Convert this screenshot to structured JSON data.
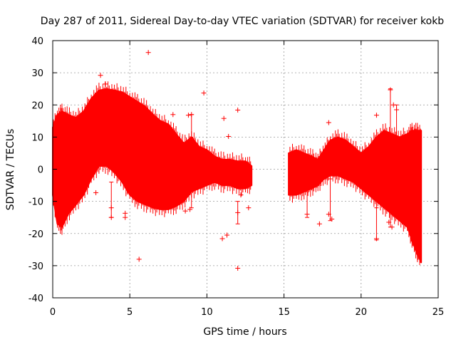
{
  "chart_data": {
    "type": "scatter",
    "title": "Day 287 of 2011, Sidereal Day-to-day VTEC variation (SDTVAR) for receiver kokb",
    "xlabel": "GPS time / hours",
    "ylabel": "SDTVAR / TECUs",
    "xlim": [
      0,
      25
    ],
    "ylim": [
      -40,
      40
    ],
    "xticks": [
      0,
      5,
      10,
      15,
      20,
      25
    ],
    "yticks": [
      -40,
      -30,
      -20,
      -10,
      0,
      10,
      20,
      30,
      40
    ],
    "grid": true,
    "color": "#ff0000",
    "envelope_segments": [
      {
        "name": "segment-1",
        "x": [
          0.0,
          0.3,
          0.6,
          1.0,
          1.5,
          2.0,
          2.5,
          3.0,
          3.5,
          4.0,
          4.5,
          5.0,
          5.5,
          6.0,
          6.5,
          7.0,
          7.5,
          8.0,
          8.5,
          9.0,
          9.5,
          10.0,
          10.5,
          11.0,
          11.5,
          12.0,
          12.5,
          12.9
        ],
        "upper": [
          13,
          17,
          18,
          17,
          16,
          18,
          22,
          24.5,
          25,
          24.5,
          24,
          22.5,
          21,
          19.5,
          17,
          15,
          14,
          11,
          8,
          10,
          7,
          6,
          4,
          3,
          3,
          2.5,
          2.5,
          1
        ],
        "lower": [
          -8,
          -17,
          -18,
          -14,
          -11,
          -8,
          -3,
          1,
          1,
          -1,
          -4,
          -8,
          -10,
          -11,
          -12,
          -12.5,
          -12.5,
          -11.5,
          -10,
          -7,
          -6,
          -5,
          -4,
          -5,
          -5,
          -6,
          -6,
          -5
        ]
      },
      {
        "name": "segment-2",
        "x": [
          15.3,
          15.8,
          16.3,
          16.8,
          17.2,
          17.6,
          18.0,
          18.5,
          19.0,
          19.5,
          20.0,
          20.5,
          21.0,
          21.5,
          22.0,
          22.5,
          23.0,
          23.3,
          23.6,
          23.9
        ],
        "upper": [
          5,
          6,
          5,
          4,
          3,
          6,
          9,
          10,
          9,
          7,
          5,
          7,
          10,
          12,
          11,
          10,
          11,
          12,
          12,
          12
        ],
        "lower": [
          -8,
          -8,
          -7,
          -6,
          -5,
          -3,
          -2,
          -2,
          -3,
          -4,
          -6,
          -8,
          -10,
          -12,
          -14,
          -16,
          -18,
          -22,
          -26,
          -29
        ]
      }
    ],
    "outliers": [
      {
        "x": 3.1,
        "y": 29.2
      },
      {
        "x": 3.4,
        "y": 26.5
      },
      {
        "x": 6.2,
        "y": 36.3
      },
      {
        "x": 5.6,
        "y": -28.0
      },
      {
        "x": 9.8,
        "y": 23.7
      },
      {
        "x": 11.0,
        "y": -21.6
      },
      {
        "x": 11.3,
        "y": -20.5
      },
      {
        "x": 12.0,
        "y": -30.8
      },
      {
        "x": 12.0,
        "y": 18.4
      },
      {
        "x": 11.1,
        "y": 15.8
      },
      {
        "x": 11.4,
        "y": 10.2
      },
      {
        "x": 8.8,
        "y": 16.8
      },
      {
        "x": 9.0,
        "y": 17.0
      },
      {
        "x": 7.8,
        "y": 17.0
      },
      {
        "x": 7.5,
        "y": 13.2
      },
      {
        "x": 2.8,
        "y": -7.3
      },
      {
        "x": 3.8,
        "y": -12.0
      },
      {
        "x": 3.8,
        "y": -15.0
      },
      {
        "x": 4.7,
        "y": -13.7
      },
      {
        "x": 4.7,
        "y": -15.0
      },
      {
        "x": 8.6,
        "y": -13.0
      },
      {
        "x": 8.9,
        "y": -12.5
      },
      {
        "x": 12.0,
        "y": -13.5
      },
      {
        "x": 12.2,
        "y": -8.0
      },
      {
        "x": 12.7,
        "y": -12.0
      },
      {
        "x": 17.3,
        "y": -17.0
      },
      {
        "x": 17.9,
        "y": 14.5
      },
      {
        "x": 17.9,
        "y": -14.0
      },
      {
        "x": 18.1,
        "y": -15.5
      },
      {
        "x": 16.5,
        "y": -14.0
      },
      {
        "x": 21.0,
        "y": 16.8
      },
      {
        "x": 21.0,
        "y": -21.6
      },
      {
        "x": 21.9,
        "y": 24.7
      },
      {
        "x": 22.1,
        "y": 20.0
      },
      {
        "x": 22.3,
        "y": 18.5
      },
      {
        "x": 21.8,
        "y": -16.5
      },
      {
        "x": 22.0,
        "y": -18.0
      },
      {
        "x": 23.7,
        "y": -20.5
      }
    ],
    "error_bars": [
      {
        "x": 3.8,
        "y0": -15,
        "y1": -4
      },
      {
        "x": 12.0,
        "y0": -17,
        "y1": -10
      },
      {
        "x": 16.5,
        "y0": -15,
        "y1": -7
      },
      {
        "x": 18.0,
        "y0": -16,
        "y1": -3
      },
      {
        "x": 21.0,
        "y0": -22,
        "y1": -12
      },
      {
        "x": 21.9,
        "y0": -18,
        "y1": 25
      },
      {
        "x": 22.3,
        "y0": -5,
        "y1": 20
      },
      {
        "x": 9.0,
        "y0": -12,
        "y1": 17
      }
    ]
  }
}
